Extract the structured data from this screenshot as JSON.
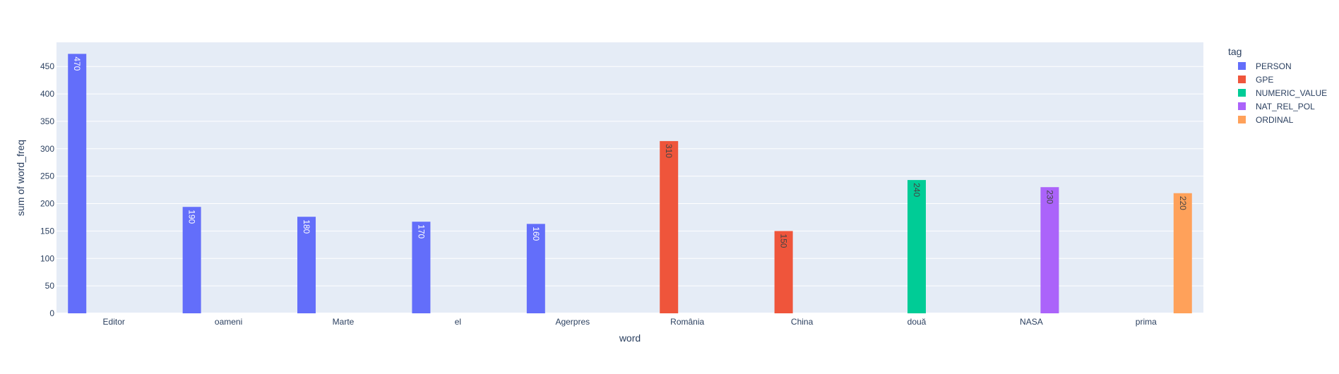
{
  "chart_data": {
    "type": "bar",
    "barmode": "group",
    "xlabel": "word",
    "ylabel": "sum of word_freq",
    "ylim": [
      0,
      494
    ],
    "yticks": [
      0,
      50,
      100,
      150,
      200,
      250,
      300,
      350,
      400,
      450
    ],
    "grid": true,
    "categories": [
      "Editor",
      "oameni",
      "Marte",
      "el",
      "Agerpres",
      "România",
      "China",
      "două",
      "NASA",
      "prima"
    ],
    "legend": {
      "title": "tag",
      "placement": "top-right"
    },
    "series": [
      {
        "name": "PERSON",
        "color": "#636efa",
        "label_color": "#ffffff",
        "values": [
          470,
          190,
          180,
          170,
          160,
          null,
          null,
          null,
          null,
          null
        ]
      },
      {
        "name": "GPE",
        "color": "#ef553b",
        "label_color": "#444444",
        "values": [
          null,
          null,
          null,
          null,
          null,
          310,
          150,
          null,
          null,
          null
        ]
      },
      {
        "name": "NUMERIC_VALUE",
        "color": "#00cc96",
        "label_color": "#444444",
        "values": [
          null,
          null,
          null,
          null,
          null,
          null,
          null,
          240,
          null,
          null
        ]
      },
      {
        "name": "NAT_REL_POL",
        "color": "#ab63fa",
        "label_color": "#444444",
        "values": [
          null,
          null,
          null,
          null,
          null,
          null,
          null,
          null,
          230,
          null
        ]
      },
      {
        "name": "ORDINAL",
        "color": "#ffa15a",
        "label_color": "#444444",
        "values": [
          null,
          null,
          null,
          null,
          null,
          null,
          null,
          null,
          null,
          220
        ]
      }
    ],
    "bar_heights": [
      473,
      194,
      176,
      167,
      163,
      314,
      150,
      243,
      230,
      219
    ],
    "colors": {
      "plot_bg": "#e5ecf6",
      "grid": "#ffffff",
      "text": "#2a3f5f"
    }
  }
}
